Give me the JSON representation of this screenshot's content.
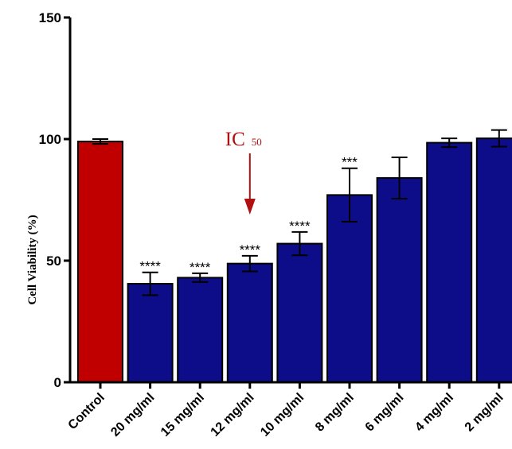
{
  "chart_data": {
    "type": "bar",
    "title": "",
    "xlabel": "",
    "ylabel": "Cell Viability (%)",
    "ylim": [
      0,
      150
    ],
    "yticks": [
      0,
      50,
      100,
      150
    ],
    "grid": false,
    "categories": [
      "Control",
      "20 mg/ml",
      "15 mg/ml",
      "12 mg/ml",
      "10 mg/ml",
      "8 mg/ml",
      "6 mg/ml",
      "4 mg/ml",
      "2 mg/ml"
    ],
    "values": [
      99,
      40.5,
      43,
      48.8,
      57,
      77,
      84,
      98.5,
      100.3
    ],
    "errors": [
      1,
      4.7,
      1.8,
      3.2,
      4.8,
      11,
      8.5,
      1.8,
      3.4
    ],
    "significance": [
      "",
      "****",
      "****",
      "****",
      "****",
      "***",
      "",
      "",
      ""
    ],
    "bar_colors": [
      "#c00000",
      "#0d0d8a",
      "#0d0d8a",
      "#0d0d8a",
      "#0d0d8a",
      "#0d0d8a",
      "#0d0d8a",
      "#0d0d8a",
      "#0d0d8a"
    ],
    "annotation": {
      "text": "IC",
      "subscript": "50",
      "target_category": "12 mg/ml",
      "color": "#b01010"
    }
  }
}
